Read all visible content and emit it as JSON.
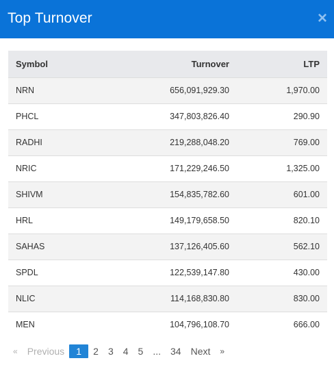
{
  "modal": {
    "title": "Top Turnover",
    "close_glyph": "×"
  },
  "table": {
    "headers": {
      "symbol": "Symbol",
      "turnover": "Turnover",
      "ltp": "LTP"
    },
    "rows": [
      {
        "symbol": "NRN",
        "turnover": "656,091,929.30",
        "ltp": "1,970.00"
      },
      {
        "symbol": "PHCL",
        "turnover": "347,803,826.40",
        "ltp": "290.90"
      },
      {
        "symbol": "RADHI",
        "turnover": "219,288,048.20",
        "ltp": "769.00"
      },
      {
        "symbol": "NRIC",
        "turnover": "171,229,246.50",
        "ltp": "1,325.00"
      },
      {
        "symbol": "SHIVM",
        "turnover": "154,835,782.60",
        "ltp": "601.00"
      },
      {
        "symbol": "HRL",
        "turnover": "149,179,658.50",
        "ltp": "820.10"
      },
      {
        "symbol": "SAHAS",
        "turnover": "137,126,405.60",
        "ltp": "562.10"
      },
      {
        "symbol": "SPDL",
        "turnover": "122,539,147.80",
        "ltp": "430.00"
      },
      {
        "symbol": "NLIC",
        "turnover": "114,168,830.80",
        "ltp": "830.00"
      },
      {
        "symbol": "MEN",
        "turnover": "104,796,108.70",
        "ltp": "666.00"
      }
    ]
  },
  "pagination": {
    "prev_arrow": "«",
    "previous": "Previous",
    "pages": [
      "1",
      "2",
      "3",
      "4",
      "5"
    ],
    "active_page": "1",
    "ellipsis": "...",
    "last_page": "34",
    "next": "Next",
    "next_arrow": "»"
  },
  "colors": {
    "header_bg": "#0a73d8",
    "active_page_bg": "#2184d6",
    "row_stripe": "#f3f3f3",
    "thead_bg": "#e8e9ec"
  }
}
